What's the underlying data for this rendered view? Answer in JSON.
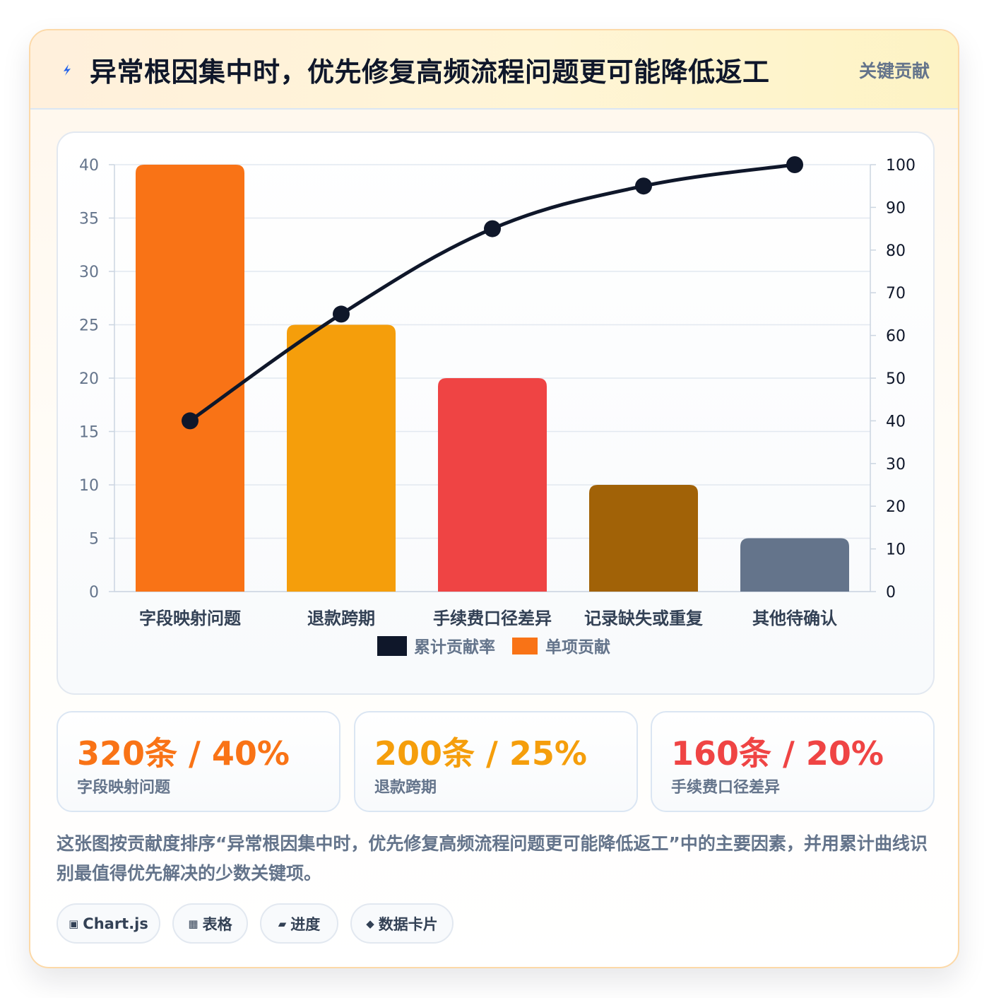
{
  "header": {
    "title": "异常根因集中时，优先修复高频流程问题更可能降低返工",
    "badge": "关键贡献",
    "icon": "lightning-icon"
  },
  "chart_data": {
    "type": "bar",
    "categories": [
      "字段映射问题",
      "退款跨期",
      "手续费口径差异",
      "记录缺失或重复",
      "其他待确认"
    ],
    "series": [
      {
        "name": "累计贡献率",
        "type": "line",
        "axis": "right",
        "values": [
          40,
          65,
          85,
          95,
          100
        ],
        "color": "#0f172a"
      },
      {
        "name": "单项贡献",
        "type": "bar",
        "axis": "left",
        "values": [
          40,
          25,
          20,
          10,
          5
        ],
        "colors": [
          "#f97316",
          "#f59e0b",
          "#ef4444",
          "#a16207",
          "#64748b"
        ]
      }
    ],
    "ylim": [
      0,
      40
    ],
    "y_ticks": [
      "0",
      "5",
      "10",
      "15",
      "20",
      "25",
      "30",
      "35",
      "40"
    ],
    "y2lim": [
      0,
      100
    ],
    "y2_ticks": [
      "0",
      "10",
      "20",
      "30",
      "40",
      "50",
      "60",
      "70",
      "80",
      "90",
      "100"
    ],
    "grid": true,
    "legend_position": "bottom"
  },
  "stats": [
    {
      "value": "320条 / 40%",
      "label": "字段映射问题",
      "color": "#f97316"
    },
    {
      "value": "200条 / 25%",
      "label": "退款跨期",
      "color": "#f59e0b"
    },
    {
      "value": "160条 / 20%",
      "label": "手续费口径差异",
      "color": "#ef4444"
    }
  ],
  "description": "这张图按贡献度排序“异常根因集中时，优先修复高频流程问题更可能降低返工”中的主要因素，并用累计曲线识别最值得优先解决的少数关键项。",
  "tags": [
    {
      "icon": "▣",
      "label": "Chart.js"
    },
    {
      "icon": "▦",
      "label": "表格"
    },
    {
      "icon": "▰",
      "label": "进度"
    },
    {
      "icon": "◆",
      "label": "数据卡片"
    }
  ]
}
